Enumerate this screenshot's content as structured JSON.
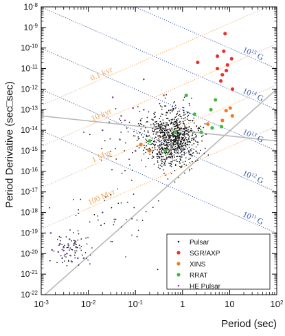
{
  "chart_data": {
    "type": "scatter",
    "xlabel": "Period (sec)",
    "ylabel": "Period Derivative (sec□sec)",
    "xscale": "log",
    "yscale": "log",
    "xlim": [
      0.001,
      100
    ],
    "ylim": [
      1e-22,
      1e-08
    ],
    "x_ticks": [
      "10-3",
      "10-2",
      "10-1",
      "1",
      "10",
      "102"
    ],
    "y_ticks": [
      "10-22",
      "10-21",
      "10-20",
      "10-19",
      "10-18",
      "10-17",
      "10-16",
      "10-15",
      "10-14",
      "10-13",
      "10-12",
      "10-11",
      "10-10",
      "10-9",
      "10-8"
    ],
    "grid": false,
    "legend_position": "bottom-right",
    "colors": {
      "Pulsar": "#111111",
      "SGR/AXP": "#e8312c",
      "XINS": "#f07c1e",
      "RRAT": "#3dbb3d",
      "HE Pulsar": "#7a45b5",
      "field_lines": "#3a58a6",
      "age_lines": "#f2a65a",
      "death_lines": "#b8b8b8"
    },
    "field_lines": [
      {
        "label": "10^15 G",
        "B": 1000000000000000.0
      },
      {
        "label": "10^14 G",
        "B": 100000000000000.0
      },
      {
        "label": "10^13 G",
        "B": 10000000000000.0
      },
      {
        "label": "10^12 G",
        "B": 1000000000000.0
      },
      {
        "label": "10^11 G",
        "B": 100000000000.0
      }
    ],
    "age_lines": [
      {
        "label": "0.1 kyr",
        "age_yr": 100
      },
      {
        "label": "10 kyr",
        "age_yr": 10000
      },
      {
        "label": "1 Myr",
        "age_yr": 1000000
      },
      {
        "label": "100 Myr",
        "age_yr": 100000000
      }
    ],
    "death_lines": [
      {
        "points": [
          [
            0.001,
            5e-14
          ],
          [
            100,
            3e-15
          ]
        ]
      },
      {
        "points": [
          [
            0.0012,
            1e-22
          ],
          [
            100,
            1e-12
          ]
        ]
      }
    ],
    "series": [
      {
        "name": "Pulsar",
        "marker": "dot",
        "color": "#111111",
        "clusters": [
          {
            "center": [
              0.6,
              4e-15
            ],
            "log_spread": [
              0.28,
              0.72
            ],
            "count": 900
          },
          {
            "center": [
              0.004,
              2e-20
            ],
            "log_spread": [
              0.22,
              0.45
            ],
            "count": 70
          },
          {
            "center": [
              0.03,
              1e-18
            ],
            "log_spread": [
              0.45,
              0.9
            ],
            "count": 45
          },
          {
            "center": [
              0.08,
              6e-15
            ],
            "log_spread": [
              0.35,
              0.8
            ],
            "count": 40
          }
        ]
      },
      {
        "name": "SGR/AXP",
        "marker": "circle",
        "color": "#e8312c",
        "points": [
          [
            8,
            5e-10
          ],
          [
            2.1,
            2e-11
          ],
          [
            5.5,
            4e-11
          ],
          [
            7.5,
            7e-11
          ],
          [
            11,
            3e-11
          ],
          [
            6.5,
            2.5e-12
          ],
          [
            8.5,
            8e-12
          ],
          [
            11.5,
            1e-12
          ],
          [
            7,
            5e-12
          ],
          [
            9,
            1.5e-11
          ],
          [
            5.5,
            1e-11
          ]
        ]
      },
      {
        "name": "XINS",
        "marker": "circle",
        "color": "#f07c1e",
        "points": [
          [
            8.4,
            9e-14
          ],
          [
            11.4,
            5e-14
          ],
          [
            10.3,
            1.2e-13
          ],
          [
            7,
            3e-14
          ],
          [
            3.45,
            2e-14
          ],
          [
            0.13,
            2e-15
          ],
          [
            0.2,
            1e-15
          ]
        ]
      },
      {
        "name": "RRAT",
        "marker": "circle",
        "color": "#3dbb3d",
        "points": [
          [
            4.26,
            1.3e-14
          ],
          [
            6.7,
            1.5e-14
          ],
          [
            2.5,
            8e-15
          ],
          [
            0.7,
            8e-15
          ],
          [
            1.2,
            5e-13
          ],
          [
            5.0,
            3e-13
          ],
          [
            4.0,
            1e-13
          ],
          [
            0.43,
            1e-15
          ],
          [
            1.8,
            6e-14
          ],
          [
            0.2,
            3e-15
          ]
        ]
      },
      {
        "name": "HE Pulsar",
        "marker": "dot",
        "color": "#7a45b5",
        "points": [
          [
            0.033,
            4e-13
          ],
          [
            0.089,
            1.2e-13
          ],
          [
            0.05,
            5e-14
          ],
          [
            0.02,
            1e-14
          ],
          [
            0.06,
            3e-14
          ],
          [
            0.15,
            3e-12
          ],
          [
            0.15,
            1e-13
          ],
          [
            0.4,
            5e-13
          ],
          [
            0.1,
            1e-15
          ],
          [
            0.0016,
            1e-19
          ],
          [
            0.003,
            2e-20
          ],
          [
            0.004,
            5e-20
          ],
          [
            0.005,
            3e-20
          ],
          [
            0.0035,
            1e-20
          ],
          [
            0.0055,
            2e-20
          ],
          [
            0.0045,
            4e-21
          ],
          [
            0.0025,
            3e-20
          ],
          [
            0.006,
            6e-21
          ],
          [
            0.0042,
            8e-21
          ],
          [
            0.003,
            1.4e-20
          ],
          [
            0.0053,
            4e-20
          ],
          [
            0.0023,
            1.2e-20
          ],
          [
            0.02,
            1e-18
          ],
          [
            0.008,
            6e-21
          ],
          [
            0.0038,
            2.5e-20
          ],
          [
            0.0028,
            6e-21
          ],
          [
            0.0017,
            1.5e-20
          ]
        ]
      }
    ]
  }
}
